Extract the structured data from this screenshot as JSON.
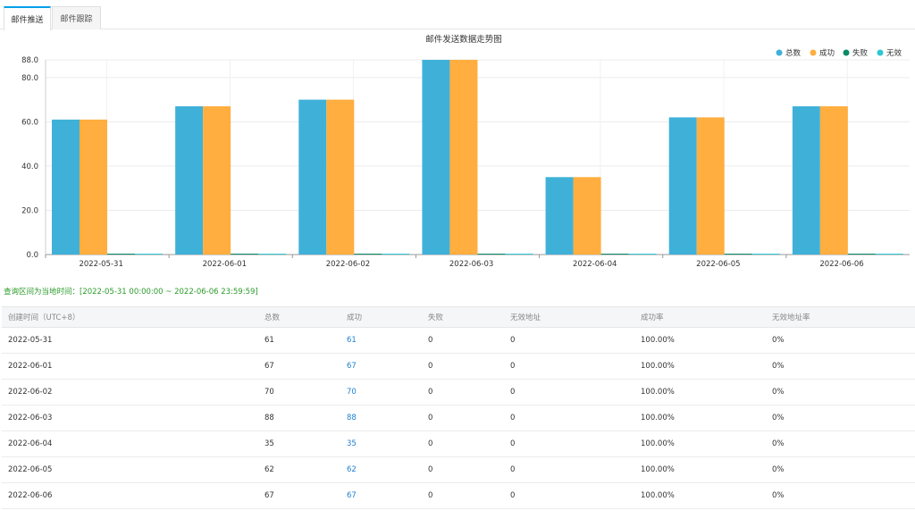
{
  "tabs": [
    {
      "label": "邮件推送",
      "active": true
    },
    {
      "label": "邮件跟踪",
      "active": false
    }
  ],
  "chart_data": {
    "type": "bar",
    "title": "邮件发送数据走势图",
    "categories": [
      "2022-05-31",
      "2022-06-01",
      "2022-06-02",
      "2022-06-03",
      "2022-06-04",
      "2022-06-05",
      "2022-06-06"
    ],
    "series": [
      {
        "name": "总数",
        "color": "#3fb1d9",
        "values": [
          61,
          67,
          70,
          88,
          35,
          62,
          67
        ]
      },
      {
        "name": "成功",
        "color": "#ffae3f",
        "values": [
          61,
          67,
          70,
          88,
          35,
          62,
          67
        ]
      },
      {
        "name": "失败",
        "color": "#0b8a67",
        "values": [
          0,
          0,
          0,
          0,
          0,
          0,
          0
        ]
      },
      {
        "name": "无效",
        "color": "#2ec7d3",
        "values": [
          0,
          0,
          0,
          0,
          0,
          0,
          0
        ]
      }
    ],
    "yticks": [
      "0.0",
      "20.0",
      "40.0",
      "60.0",
      "80.0",
      "88.0"
    ],
    "ylim": [
      0,
      88
    ],
    "legend_position": "top-right",
    "grid": true
  },
  "range_note": "查询区间为当地时间：[2022-05-31 00:00:00 ~ 2022-06-06 23:59:59]",
  "table": {
    "headers": [
      "创建时间（UTC+8）",
      "总数",
      "成功",
      "失败",
      "无效地址",
      "成功率",
      "无效地址率"
    ],
    "rows": [
      [
        "2022-05-31",
        "61",
        "61",
        "0",
        "0",
        "100.00%",
        "0%"
      ],
      [
        "2022-06-01",
        "67",
        "67",
        "0",
        "0",
        "100.00%",
        "0%"
      ],
      [
        "2022-06-02",
        "70",
        "70",
        "0",
        "0",
        "100.00%",
        "0%"
      ],
      [
        "2022-06-03",
        "88",
        "88",
        "0",
        "0",
        "100.00%",
        "0%"
      ],
      [
        "2022-06-04",
        "35",
        "35",
        "0",
        "0",
        "100.00%",
        "0%"
      ],
      [
        "2022-06-05",
        "62",
        "62",
        "0",
        "0",
        "100.00%",
        "0%"
      ],
      [
        "2022-06-06",
        "67",
        "67",
        "0",
        "0",
        "100.00%",
        "0%"
      ]
    ]
  }
}
